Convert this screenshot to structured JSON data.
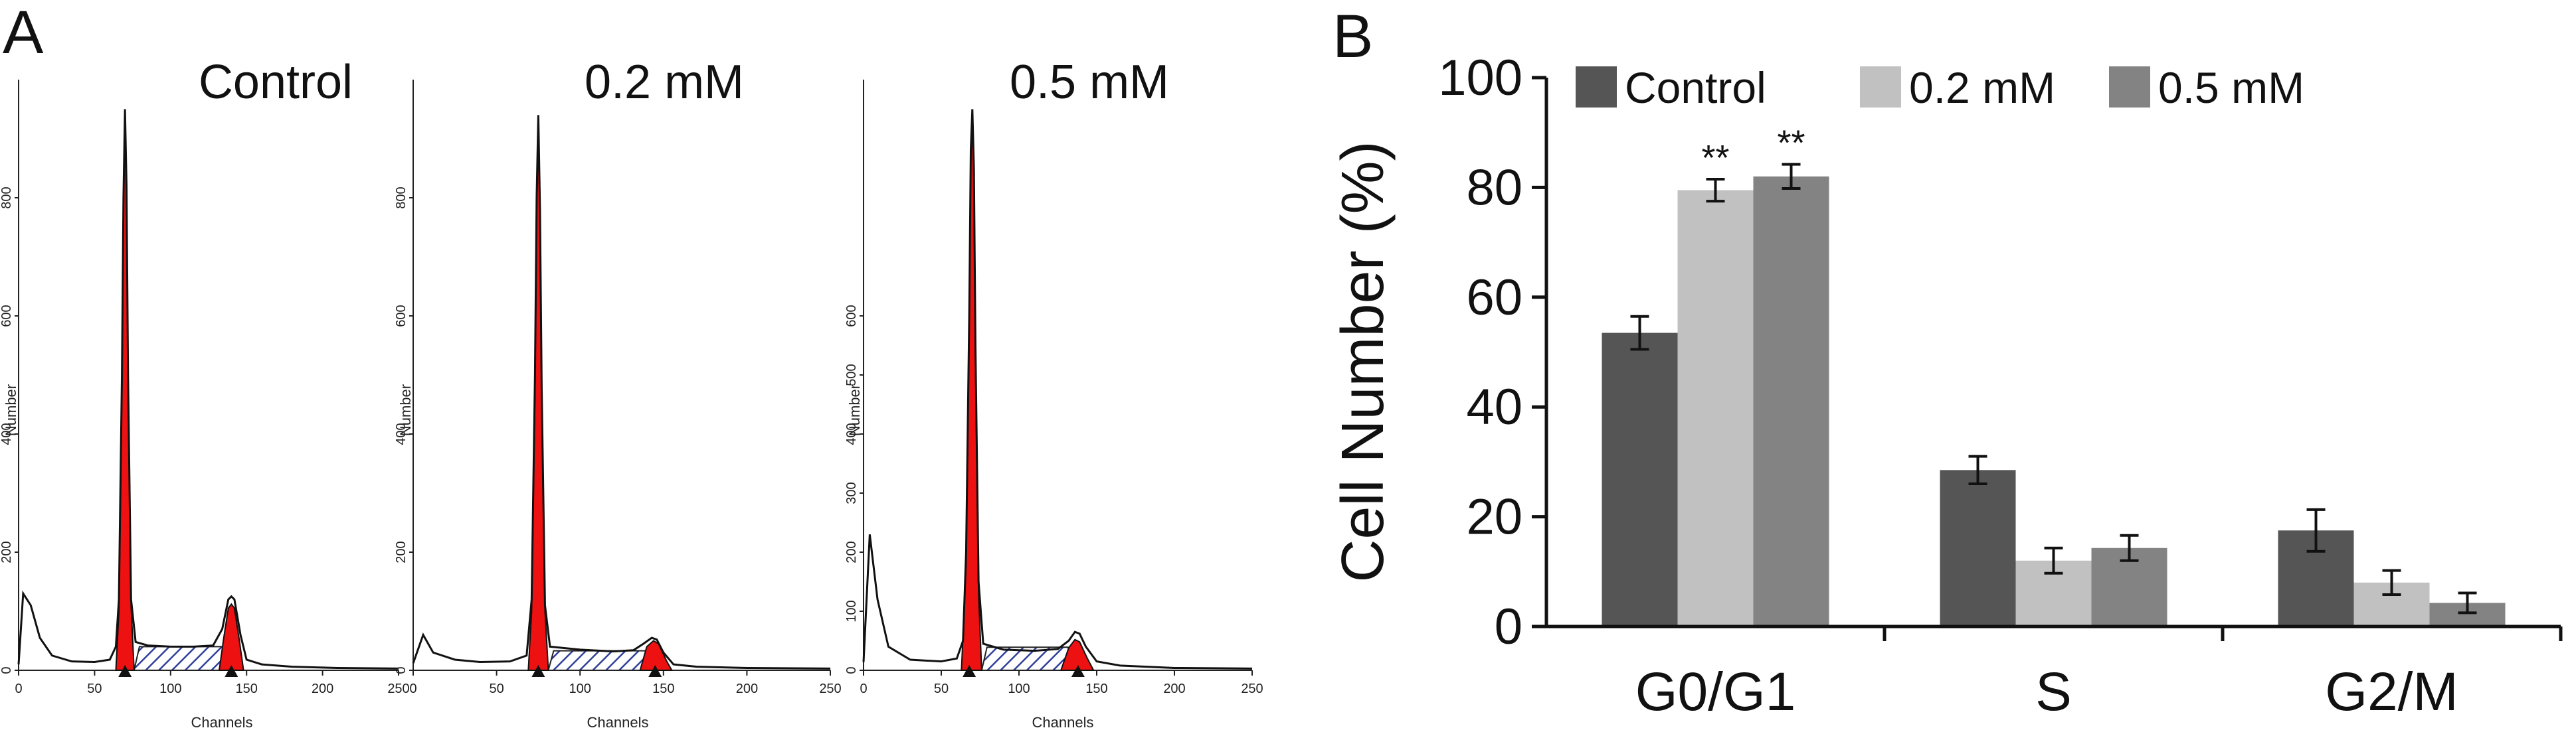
{
  "figure": {
    "panel_a": {
      "letter": "A"
    },
    "panel_b": {
      "letter": "B"
    }
  },
  "chart_data": [
    {
      "type": "histogram",
      "title": "Control",
      "xlabel": "Channels",
      "ylabel": "Number",
      "xlim": [
        0,
        250
      ],
      "ylim": [
        0,
        1000
      ],
      "x_ticks": [
        0,
        50,
        100,
        150,
        200,
        250
      ],
      "y_ticks": [
        0,
        200,
        400,
        600,
        800
      ],
      "g1_peak_channel": 70,
      "g1_peak_height": 950,
      "g2_peak_channel": 140,
      "g2_peak_height": 120,
      "marker_channels": [
        70,
        140
      ],
      "curve": [
        [
          0,
          10
        ],
        [
          3,
          130
        ],
        [
          8,
          110
        ],
        [
          14,
          55
        ],
        [
          22,
          25
        ],
        [
          35,
          15
        ],
        [
          50,
          14
        ],
        [
          60,
          18
        ],
        [
          64,
          40
        ],
        [
          66,
          120
        ],
        [
          68,
          500
        ],
        [
          69,
          800
        ],
        [
          70,
          950
        ],
        [
          71,
          820
        ],
        [
          72,
          500
        ],
        [
          74,
          120
        ],
        [
          77,
          48
        ],
        [
          85,
          42
        ],
        [
          100,
          40
        ],
        [
          115,
          40
        ],
        [
          128,
          42
        ],
        [
          134,
          70
        ],
        [
          138,
          120
        ],
        [
          140,
          125
        ],
        [
          142,
          120
        ],
        [
          146,
          60
        ],
        [
          150,
          18
        ],
        [
          160,
          10
        ],
        [
          180,
          6
        ],
        [
          210,
          4
        ],
        [
          250,
          3
        ]
      ],
      "g1_fill": [
        [
          64,
          0
        ],
        [
          66,
          100
        ],
        [
          68,
          480
        ],
        [
          69,
          780
        ],
        [
          70,
          935
        ],
        [
          71,
          800
        ],
        [
          72,
          480
        ],
        [
          74,
          110
        ],
        [
          76,
          0
        ]
      ],
      "g2_fill": [
        [
          132,
          0
        ],
        [
          135,
          55
        ],
        [
          138,
          105
        ],
        [
          140,
          112
        ],
        [
          142,
          105
        ],
        [
          145,
          55
        ],
        [
          148,
          0
        ]
      ]
    },
    {
      "type": "histogram",
      "title": "0.2 mM",
      "xlabel": "Channels",
      "ylabel": "Number",
      "xlim": [
        0,
        250
      ],
      "ylim": [
        0,
        1000
      ],
      "x_ticks": [
        0,
        50,
        100,
        150,
        200,
        250
      ],
      "y_ticks": [
        0,
        200,
        400,
        600,
        800
      ],
      "g1_peak_channel": 75,
      "g1_peak_height": 940,
      "g2_peak_channel": 145,
      "g2_peak_height": 55,
      "marker_channels": [
        75,
        145
      ],
      "curve": [
        [
          0,
          12
        ],
        [
          6,
          60
        ],
        [
          12,
          30
        ],
        [
          25,
          18
        ],
        [
          40,
          14
        ],
        [
          58,
          15
        ],
        [
          68,
          25
        ],
        [
          71,
          120
        ],
        [
          73,
          500
        ],
        [
          74,
          800
        ],
        [
          75,
          940
        ],
        [
          76,
          780
        ],
        [
          77,
          480
        ],
        [
          79,
          110
        ],
        [
          82,
          40
        ],
        [
          100,
          35
        ],
        [
          120,
          32
        ],
        [
          132,
          34
        ],
        [
          138,
          45
        ],
        [
          143,
          55
        ],
        [
          146,
          52
        ],
        [
          150,
          30
        ],
        [
          156,
          10
        ],
        [
          170,
          6
        ],
        [
          200,
          4
        ],
        [
          250,
          3
        ]
      ],
      "g1_fill": [
        [
          69,
          0
        ],
        [
          71,
          100
        ],
        [
          73,
          470
        ],
        [
          74,
          770
        ],
        [
          75,
          925
        ],
        [
          76,
          760
        ],
        [
          77,
          450
        ],
        [
          79,
          100
        ],
        [
          81,
          0
        ]
      ],
      "g2_fill": [
        [
          136,
          0
        ],
        [
          140,
          40
        ],
        [
          144,
          50
        ],
        [
          147,
          45
        ],
        [
          152,
          15
        ],
        [
          155,
          0
        ]
      ]
    },
    {
      "type": "histogram",
      "title": "0.5 mM",
      "xlabel": "Channels",
      "ylabel": "Number",
      "xlim": [
        0,
        250
      ],
      "ylim": [
        0,
        1000
      ],
      "x_ticks": [
        0,
        50,
        100,
        150,
        200,
        250
      ],
      "y_ticks": [
        0,
        100,
        200,
        300,
        400,
        500,
        600
      ],
      "g1_peak_channel": 70,
      "g1_peak_height": 950,
      "g2_peak_channel": 137,
      "g2_peak_height": 65,
      "marker_channels": [
        68,
        138
      ],
      "curve": [
        [
          0,
          14
        ],
        [
          4,
          230
        ],
        [
          9,
          120
        ],
        [
          16,
          40
        ],
        [
          30,
          18
        ],
        [
          50,
          15
        ],
        [
          60,
          20
        ],
        [
          64,
          50
        ],
        [
          66,
          200
        ],
        [
          68,
          600
        ],
        [
          69,
          880
        ],
        [
          70,
          950
        ],
        [
          71,
          850
        ],
        [
          72,
          550
        ],
        [
          74,
          150
        ],
        [
          77,
          45
        ],
        [
          90,
          35
        ],
        [
          110,
          33
        ],
        [
          125,
          36
        ],
        [
          132,
          50
        ],
        [
          136,
          65
        ],
        [
          139,
          62
        ],
        [
          143,
          40
        ],
        [
          150,
          15
        ],
        [
          165,
          8
        ],
        [
          200,
          4
        ],
        [
          250,
          3
        ]
      ],
      "g1_fill": [
        [
          63,
          0
        ],
        [
          66,
          180
        ],
        [
          68,
          580
        ],
        [
          69,
          860
        ],
        [
          70,
          935
        ],
        [
          71,
          830
        ],
        [
          72,
          520
        ],
        [
          74,
          130
        ],
        [
          76,
          0
        ]
      ],
      "g2_fill": [
        [
          127,
          0
        ],
        [
          132,
          38
        ],
        [
          136,
          52
        ],
        [
          139,
          48
        ],
        [
          144,
          20
        ],
        [
          148,
          0
        ]
      ]
    },
    {
      "type": "bar",
      "categories": [
        "G0/G1",
        "S",
        "G2/M"
      ],
      "series": [
        {
          "name": "Control",
          "color": "#555555",
          "values": [
            53.5,
            28.5,
            17.5
          ],
          "errors": [
            3.0,
            2.5,
            3.8
          ]
        },
        {
          "name": "0.2 mM",
          "color": "#c1c1c1",
          "values": [
            79.5,
            12.0,
            8.0
          ],
          "errors": [
            2.0,
            2.3,
            2.2
          ]
        },
        {
          "name": "0.5 mM",
          "color": "#838383",
          "values": [
            82.0,
            14.3,
            4.3
          ],
          "errors": [
            2.2,
            2.3,
            1.8
          ]
        }
      ],
      "significance": [
        {
          "category": "G0/G1",
          "series": "0.2 mM",
          "label": "**"
        },
        {
          "category": "G0/G1",
          "series": "0.5 mM",
          "label": "**"
        }
      ],
      "title": "",
      "xlabel": "",
      "ylabel": "Cell Number (%)",
      "ylim": [
        0,
        100
      ],
      "y_ticks": [
        0,
        20,
        40,
        60,
        80,
        100
      ],
      "legend_position": "top"
    }
  ]
}
